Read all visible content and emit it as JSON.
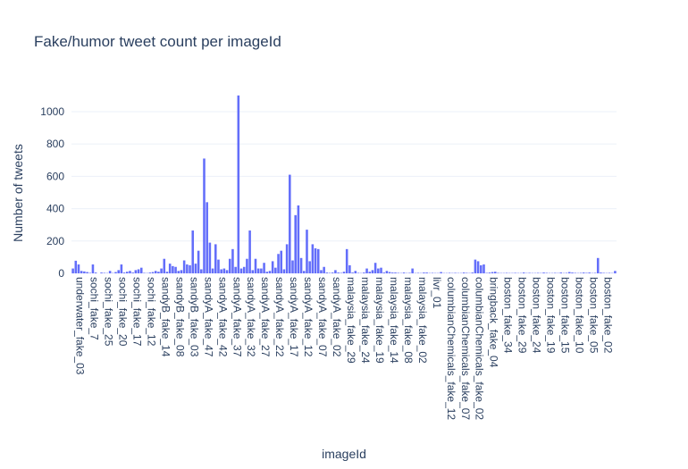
{
  "chart_data": {
    "type": "bar",
    "title": "Fake/humor tweet count per imageId",
    "xlabel": "imageId",
    "ylabel": "Number of tweets",
    "ylim": [
      0,
      1160
    ],
    "yticks": [
      0,
      200,
      400,
      600,
      800,
      1000
    ],
    "grid": true,
    "bar_color": "#636efa",
    "x_tick_labels": [
      "underwater_fake_03",
      "sochi_fake_7",
      "sochi_fake_25",
      "sochi_fake_20",
      "sochi_fake_17",
      "sochi_fake_12",
      "sandyB_fake_14",
      "sandyB_fake_08",
      "sandyB_fake_03",
      "sandyA_fake_47",
      "sandyA_fake_42",
      "sandyA_fake_37",
      "sandyA_fake_32",
      "sandyA_fake_27",
      "sandyA_fake_22",
      "sandyA_fake_17",
      "sandyA_fake_12",
      "sandyA_fake_07",
      "sandyA_fake_02",
      "malaysia_fake_29",
      "malaysia_fake_24",
      "malaysia_fake_19",
      "malaysia_fake_14",
      "malaysia_fake_08",
      "malaysia_fake_02",
      "livr_01",
      "columbianChemicals_fake_12",
      "columbianChemicals_fake_07",
      "columbianChemicals_fake_02",
      "bringback_fake_04",
      "boston_fake_34",
      "boston_fake_29",
      "boston_fake_24",
      "boston_fake_19",
      "boston_fake_15",
      "boston_fake_10",
      "boston_fake_05",
      "boston_fake_02"
    ],
    "tick_every": 5,
    "values": [
      30,
      78,
      55,
      15,
      12,
      8,
      3,
      55,
      5,
      0,
      5,
      3,
      2,
      15,
      2,
      8,
      20,
      55,
      5,
      10,
      15,
      5,
      20,
      25,
      35,
      3,
      2,
      5,
      8,
      15,
      10,
      30,
      90,
      10,
      60,
      45,
      40,
      15,
      20,
      80,
      55,
      50,
      265,
      60,
      140,
      25,
      710,
      440,
      190,
      30,
      180,
      85,
      25,
      30,
      20,
      90,
      150,
      40,
      1100,
      30,
      40,
      90,
      265,
      20,
      90,
      30,
      30,
      65,
      10,
      15,
      75,
      35,
      120,
      140,
      25,
      180,
      610,
      80,
      360,
      420,
      95,
      15,
      270,
      75,
      180,
      155,
      150,
      20,
      40,
      5,
      3,
      5,
      20,
      5,
      3,
      10,
      150,
      50,
      5,
      15,
      3,
      2,
      5,
      30,
      10,
      20,
      65,
      30,
      35,
      5,
      15,
      8,
      5,
      5,
      3,
      2,
      5,
      2,
      3,
      30,
      2,
      3,
      2,
      5,
      5,
      2,
      3,
      2,
      2,
      8,
      2,
      2,
      3,
      2,
      3,
      2,
      2,
      5,
      3,
      2,
      5,
      85,
      75,
      50,
      55,
      3,
      5,
      8,
      10,
      3,
      2,
      2,
      3,
      2,
      2,
      3,
      2,
      2,
      5,
      2,
      3,
      2,
      2,
      3,
      2,
      5,
      3,
      2,
      2,
      3,
      2,
      5,
      2,
      3,
      8,
      5,
      3,
      2,
      3,
      5,
      3,
      5,
      2,
      3,
      95,
      5,
      3,
      2,
      3,
      2,
      15
    ]
  }
}
